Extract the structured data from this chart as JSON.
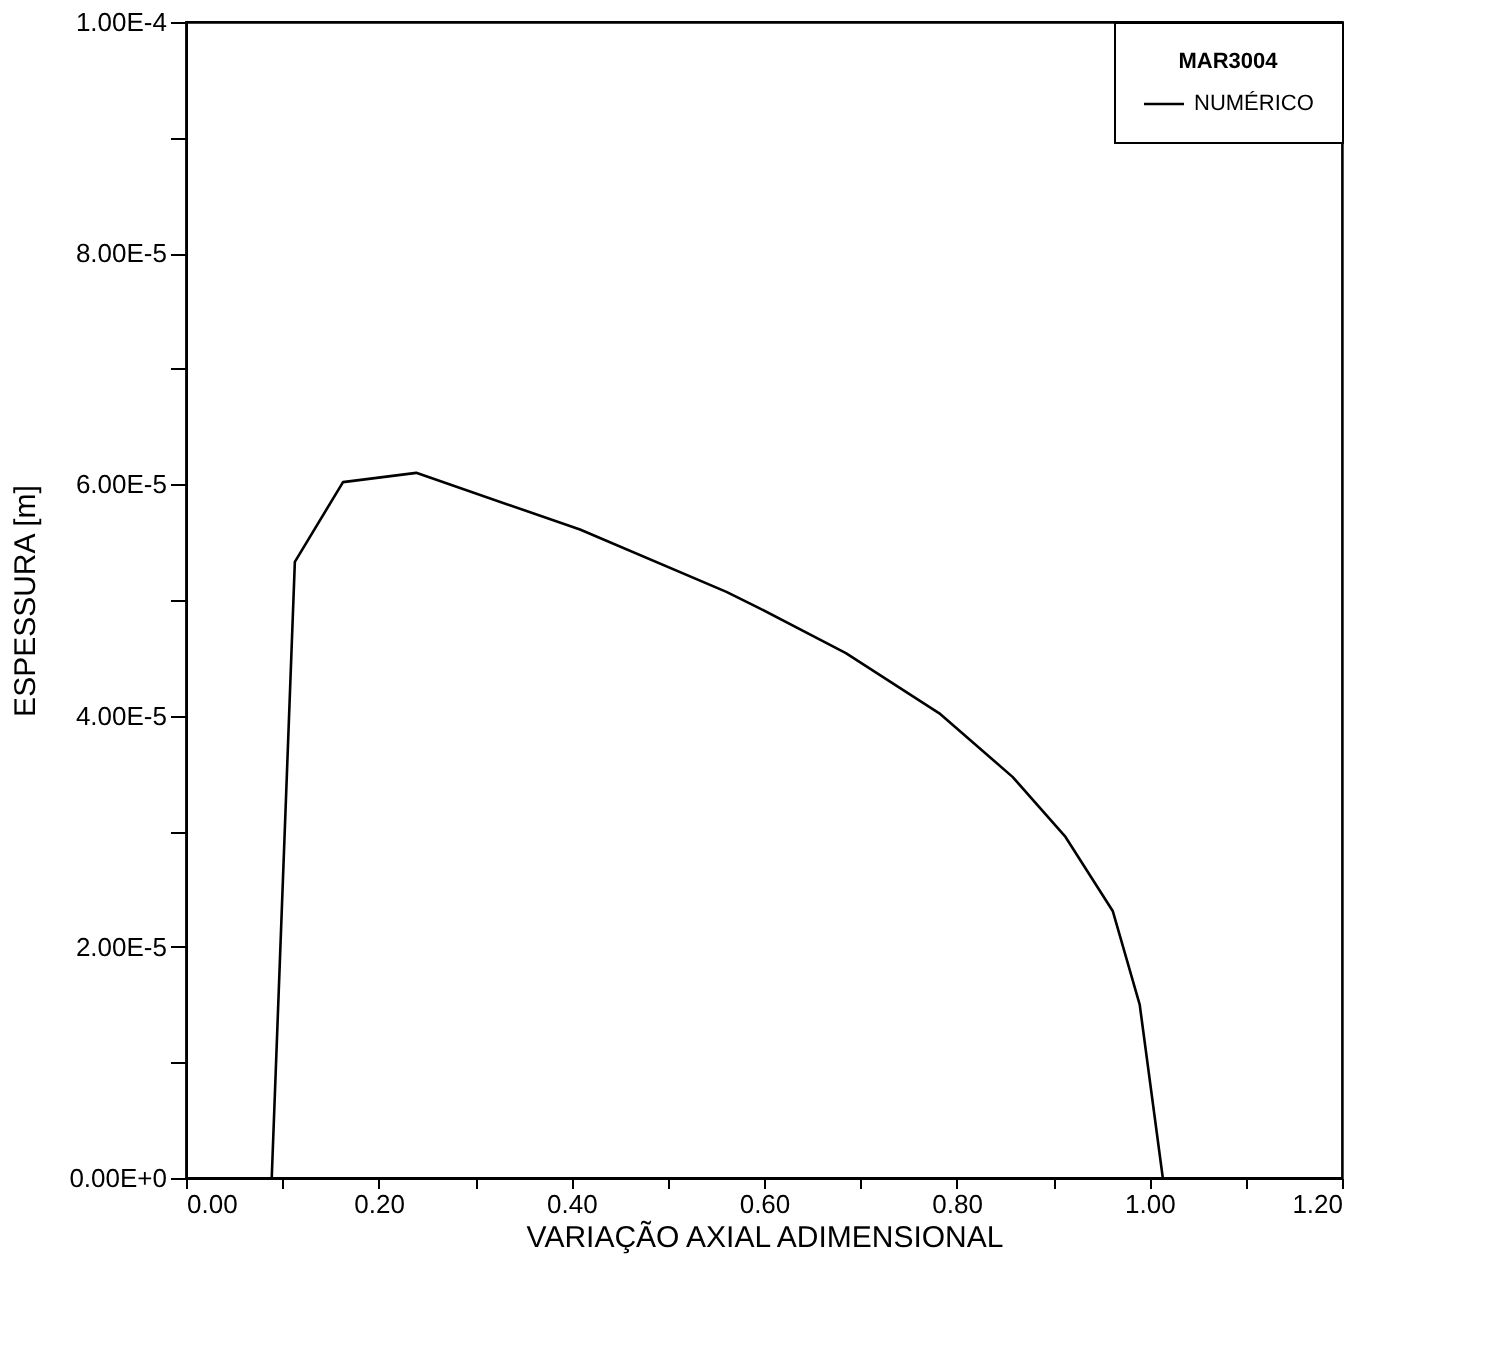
{
  "chart_data": {
    "type": "line",
    "xlabel": "VARIAÇÃO AXIAL ADIMENSIONAL",
    "ylabel": "ESPESSURA [m]",
    "legend_title": "MAR3004",
    "legend": "top right",
    "grid": false,
    "marker": "none",
    "line_style": "solid",
    "series": [
      {
        "name": "NUMÉRICO",
        "color": "#000000",
        "x": [
          0.089,
          0.113,
          0.163,
          0.239,
          0.409,
          0.561,
          0.595,
          0.685,
          0.782,
          0.858,
          0.913,
          0.962,
          0.99,
          1.014
        ],
        "values": [
          0,
          5.33e-05,
          6.02e-05,
          6.1e-05,
          5.61e-05,
          5.07e-05,
          4.93e-05,
          4.54e-05,
          4.02e-05,
          3.47e-05,
          2.95e-05,
          2.31e-05,
          1.5e-05,
          0
        ]
      }
    ],
    "xlim": [
      0,
      1.2
    ],
    "xticks": [
      {
        "value": 0,
        "label": "0.00"
      },
      {
        "value": 0.1,
        "label": null
      },
      {
        "value": 0.2,
        "label": "0.20"
      },
      {
        "value": 0.3,
        "label": null
      },
      {
        "value": 0.4,
        "label": "0.40"
      },
      {
        "value": 0.5,
        "label": null
      },
      {
        "value": 0.6,
        "label": "0.60"
      },
      {
        "value": 0.7,
        "label": null
      },
      {
        "value": 0.8,
        "label": "0.80"
      },
      {
        "value": 0.9,
        "label": null
      },
      {
        "value": 1.0,
        "label": "1.00"
      },
      {
        "value": 1.1,
        "label": null
      },
      {
        "value": 1.2,
        "label": "1.20"
      }
    ],
    "ylim": [
      0,
      0.0001
    ],
    "yticks": [
      {
        "value": 0,
        "label": "0.00E+0"
      },
      {
        "value": 1e-05,
        "label": null
      },
      {
        "value": 2e-05,
        "label": "2.00E-5"
      },
      {
        "value": 3e-05,
        "label": null
      },
      {
        "value": 4e-05,
        "label": "4.00E-5"
      },
      {
        "value": 5e-05,
        "label": null
      },
      {
        "value": 6e-05,
        "label": "6.00E-5"
      },
      {
        "value": 7e-05,
        "label": null
      },
      {
        "value": 8e-05,
        "label": "8.00E-5"
      },
      {
        "value": 9e-05,
        "label": null
      },
      {
        "value": 0.0001,
        "label": "1.00E-4"
      }
    ]
  }
}
